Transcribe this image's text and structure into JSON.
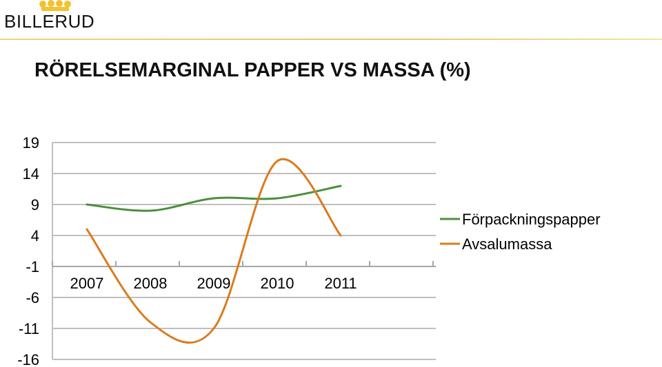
{
  "brand": {
    "name": "BILLERUD"
  },
  "colors": {
    "green": "#4a8f3c",
    "orange": "#d97c1e",
    "gold": "#f2c230",
    "grid": "#bfbfbf"
  },
  "chart_data": {
    "type": "line",
    "title": "RÖRELSEMARGINAL PAPPER VS MASSA (%)",
    "x": [
      "2007",
      "2008",
      "2009",
      "2010",
      "2011"
    ],
    "y_ticks": [
      "19",
      "14",
      "9",
      "4",
      "-1",
      "-6",
      "-11",
      "-16"
    ],
    "ylim": [
      -16,
      19
    ],
    "series": [
      {
        "name": "Förpackningspapper",
        "color": "#4a8f3c",
        "values": [
          9,
          8,
          10,
          10,
          12
        ]
      },
      {
        "name": "Avsalumassa",
        "color": "#d97c1e",
        "values": [
          5,
          -10,
          -11,
          16,
          4
        ]
      }
    ],
    "grid": true,
    "legend": "right"
  }
}
